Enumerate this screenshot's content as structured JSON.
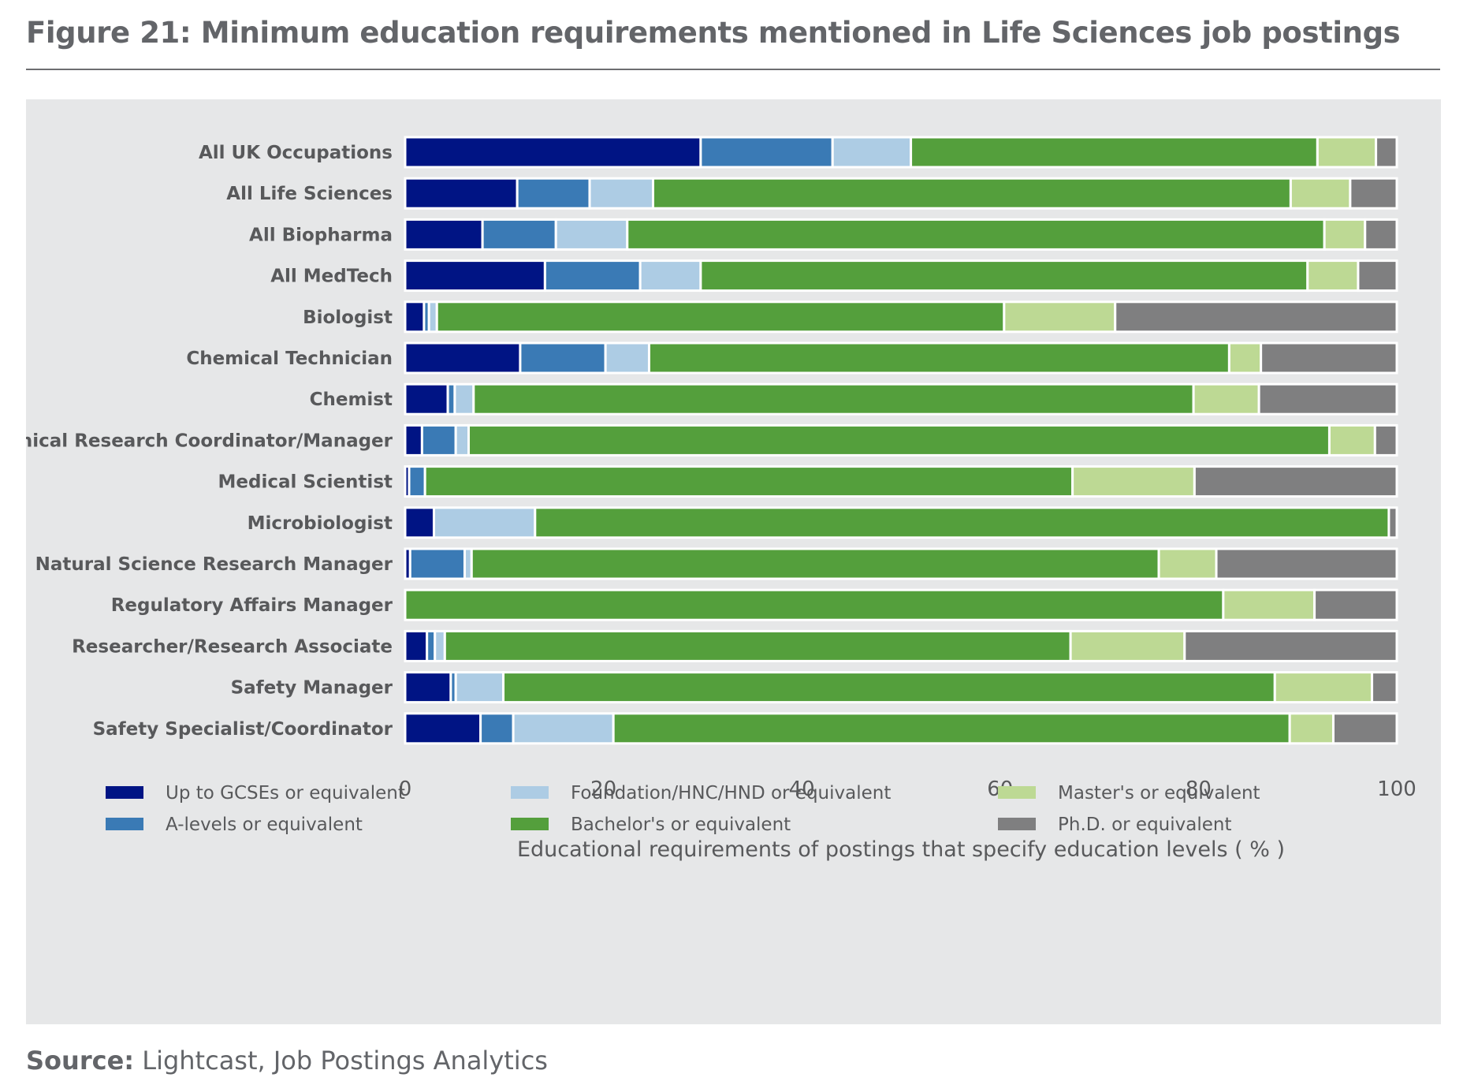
{
  "title": {
    "prefix": "Figure 21:",
    "text": " Minimum education requirements mentioned in Life Sciences job postings"
  },
  "source": {
    "label": "Source:",
    "text": " Lightcast, Job Postings Analytics"
  },
  "chart_data": {
    "type": "bar",
    "orientation": "horizontal",
    "stacked": true,
    "xlabel": "Educational requirements of postings that specify education levels ( % )",
    "ylabel": "",
    "xlim": [
      0,
      100
    ],
    "xticks": [
      0,
      20,
      40,
      60,
      80,
      100
    ],
    "legend_position": "bottom",
    "categories": [
      "All UK Occupations",
      "All Life Sciences",
      "All Biopharma",
      "All MedTech",
      "Biologist",
      "Chemical Technician",
      "Chemist",
      "Clinical Research Coordinator/Manager",
      "Medical Scientist",
      "Microbiologist",
      "Natural Science Research Manager",
      "Regulatory Affairs Manager",
      "Researcher/Research Associate",
      "Safety Manager",
      "Safety Specialist/Coordinator"
    ],
    "series": [
      {
        "name": "Up to GCSEs or equivalent",
        "color": "#001484",
        "values": [
          29.8,
          11.3,
          7.8,
          14.1,
          1.9,
          11.6,
          4.3,
          1.7,
          0.4,
          2.9,
          0.5,
          0.0,
          2.2,
          4.6,
          7.6
        ]
      },
      {
        "name": "A-levels or equivalent",
        "color": "#3a7ab5",
        "values": [
          13.3,
          7.3,
          7.4,
          9.6,
          0.5,
          8.6,
          0.7,
          3.4,
          1.6,
          0.0,
          5.5,
          0.0,
          0.8,
          0.5,
          3.3
        ]
      },
      {
        "name": "Foundation/HNC/HND or equivalent",
        "color": "#adcce4",
        "values": [
          7.9,
          6.4,
          7.2,
          6.1,
          0.8,
          4.4,
          1.9,
          1.3,
          0.0,
          10.2,
          0.7,
          0.0,
          1.0,
          4.8,
          10.1
        ]
      },
      {
        "name": "Bachelor's or equivalent",
        "color": "#549f3c",
        "values": [
          41.0,
          64.3,
          70.3,
          61.2,
          57.2,
          58.5,
          72.6,
          86.8,
          65.3,
          86.1,
          69.3,
          82.5,
          63.1,
          77.8,
          68.2
        ]
      },
      {
        "name": "Master's or equivalent",
        "color": "#bdd994",
        "values": [
          5.9,
          6.0,
          4.1,
          5.1,
          11.2,
          3.2,
          6.6,
          4.6,
          12.3,
          0.0,
          5.8,
          9.2,
          11.5,
          9.8,
          4.4
        ]
      },
      {
        "name": "Ph.D. or equivalent",
        "color": "#7f7f80",
        "values": [
          2.1,
          4.7,
          3.2,
          3.9,
          28.4,
          13.7,
          13.9,
          2.2,
          20.4,
          0.8,
          18.2,
          8.3,
          21.4,
          2.5,
          6.4
        ]
      }
    ]
  }
}
